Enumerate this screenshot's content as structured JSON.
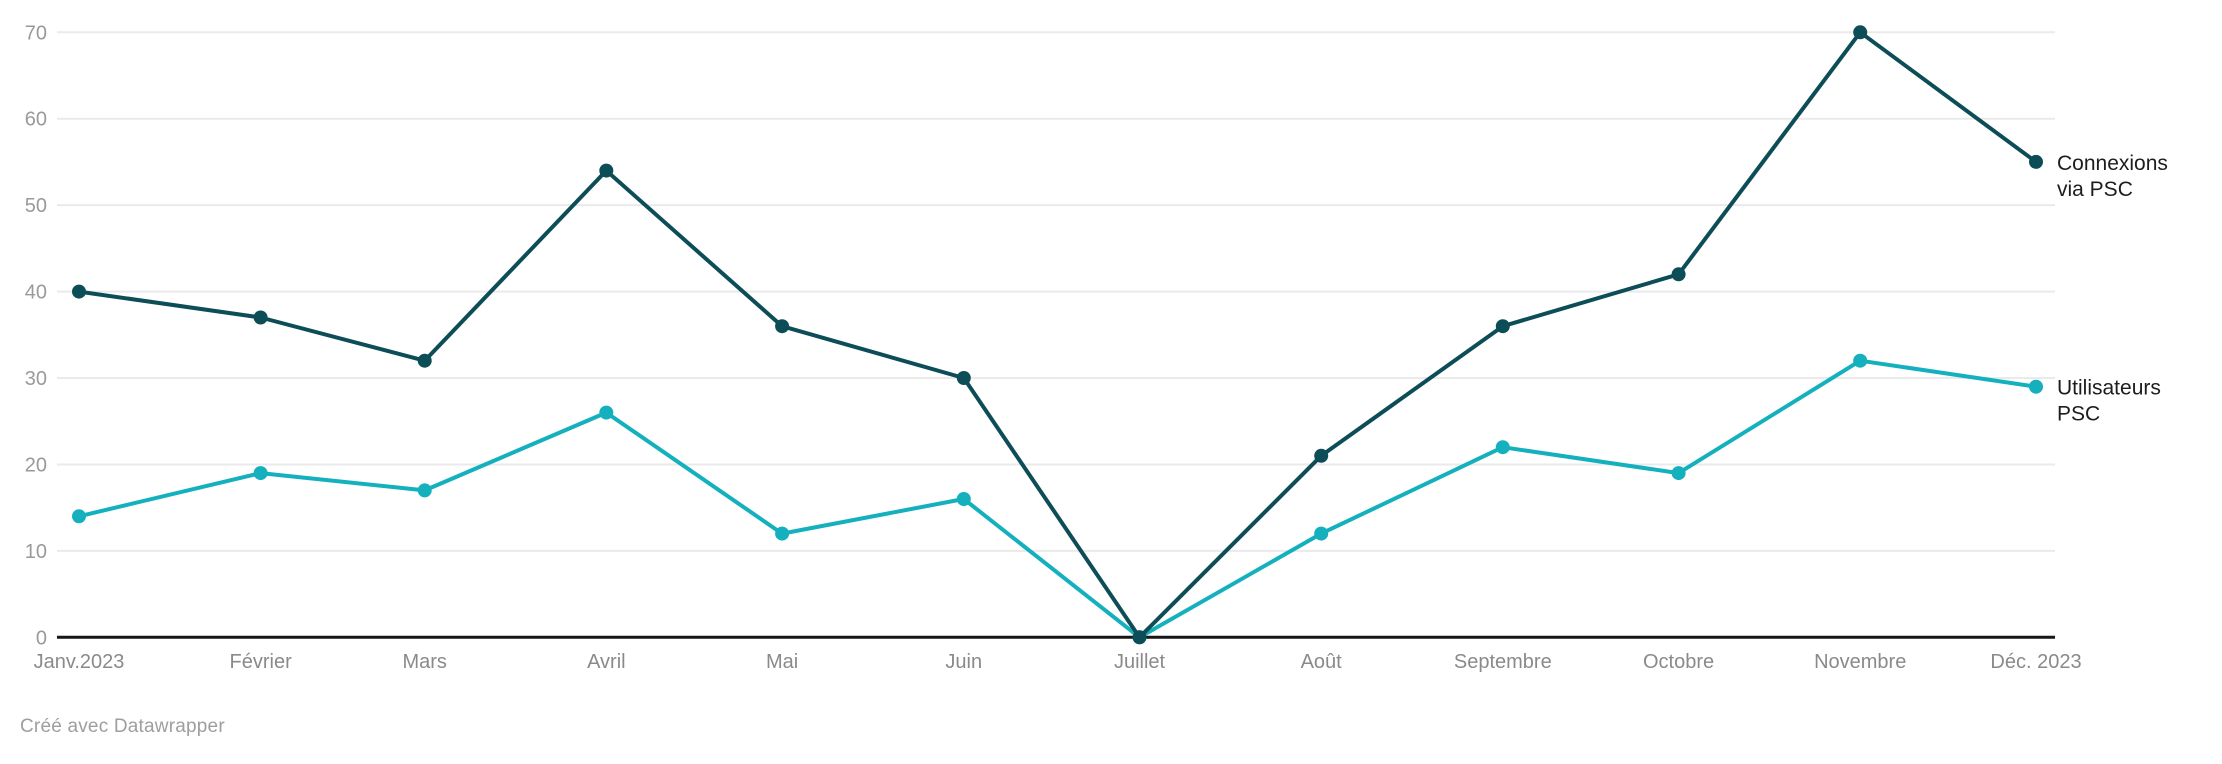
{
  "chart_data": {
    "type": "line",
    "title": "",
    "xlabel": "",
    "ylabel": "",
    "x_tick_labels": [
      "Janv.2023",
      "Février",
      "Mars",
      "Avril",
      "Mai",
      "Juin",
      "Juillet",
      "Août",
      "Septembre",
      "Octobre",
      "Novembre",
      "Déc. 2023"
    ],
    "x_day_offsets": [
      0,
      31,
      59,
      90,
      120,
      151,
      181,
      212,
      243,
      273,
      304,
      334
    ],
    "y_ticks": [
      0,
      10,
      20,
      30,
      40,
      50,
      60,
      70
    ],
    "ylim": [
      0,
      70
    ],
    "grid": "horizontal",
    "legend_position": "direct-labels-right",
    "series": [
      {
        "name": "Utilisateurs PSC",
        "label_lines": [
          "Utilisateurs",
          "PSC"
        ],
        "color": "#14b0bd",
        "values": [
          14,
          19,
          17,
          26,
          12,
          16,
          0,
          12,
          22,
          19,
          32,
          29
        ]
      },
      {
        "name": "Connexions via PSC",
        "label_lines": [
          "Connexions",
          "via PSC"
        ],
        "color": "#0d4d57",
        "values": [
          40,
          37,
          32,
          54,
          36,
          30,
          0,
          21,
          36,
          42,
          70,
          55
        ]
      }
    ]
  },
  "colors": {
    "background": "#ffffff",
    "gridline": "#eaeaea",
    "axis_line": "#161616",
    "y_tick_text": "#9a9a9a",
    "x_tick_text": "#8a8a8a",
    "direct_label_text": "#1d1d1d",
    "attribution_text": "#9e9e9e"
  },
  "attribution": "Créé avec Datawrapper"
}
